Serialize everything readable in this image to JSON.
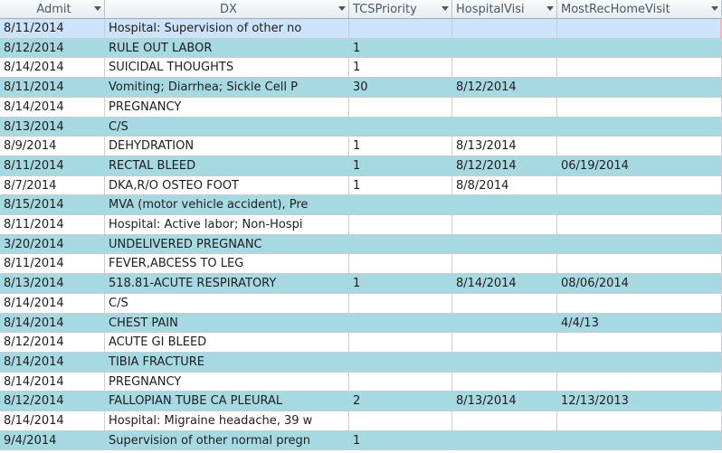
{
  "columns": [
    "Admit",
    "DX",
    "TCSPriority",
    "HospitalVisi",
    "MostRecHomeVisit"
  ],
  "rows": [
    [
      "8/11/2014",
      "Hospital: Supervision of other no",
      "",
      "",
      ""
    ],
    [
      "8/12/2014",
      "RULE OUT LABOR",
      "1",
      "",
      ""
    ],
    [
      "8/14/2014",
      "SUICIDAL THOUGHTS",
      "1",
      "",
      ""
    ],
    [
      "8/11/2014",
      "Vomiting; Diarrhea; Sickle Cell P",
      "30",
      "8/12/2014",
      ""
    ],
    [
      "8/14/2014",
      "PREGNANCY",
      "",
      "",
      ""
    ],
    [
      "8/13/2014",
      "C/S",
      "",
      "",
      ""
    ],
    [
      "8/9/2014",
      "DEHYDRATION",
      "1",
      "8/13/2014",
      ""
    ],
    [
      "8/11/2014",
      "RECTAL BLEED",
      "1",
      "8/12/2014",
      "06/19/2014"
    ],
    [
      "8/7/2014",
      "DKA,R/O OSTEO FOOT",
      "1",
      "8/8/2014",
      ""
    ],
    [
      "8/15/2014",
      "MVA (motor vehicle accident), Pre",
      "",
      "",
      ""
    ],
    [
      "8/11/2014",
      "Hospital: Active labor; Non-Hospi",
      "",
      "",
      ""
    ],
    [
      "3/20/2014",
      "UNDELIVERED PREGNANC",
      "",
      "",
      ""
    ],
    [
      "8/11/2014",
      "FEVER,ABCESS TO LEG",
      "",
      "",
      ""
    ],
    [
      "8/13/2014",
      "518.81-ACUTE RESPIRATORY",
      "1",
      "8/14/2014",
      "08/06/2014"
    ],
    [
      "8/14/2014",
      "C/S",
      "",
      "",
      ""
    ],
    [
      "8/14/2014",
      "CHEST PAIN",
      "",
      "",
      "4/4/13"
    ],
    [
      "8/12/2014",
      "ACUTE GI BLEED",
      "",
      "",
      ""
    ],
    [
      "8/14/2014",
      "TIBIA FRACTURE",
      "",
      "",
      ""
    ],
    [
      "8/14/2014",
      "PREGNANCY",
      "",
      "",
      ""
    ],
    [
      "8/12/2014",
      "FALLOPIAN TUBE CA PLEURAL",
      "2",
      "8/13/2014",
      "12/13/2013"
    ],
    [
      "8/14/2014",
      "Hospital: Migraine headache, 39 w",
      "",
      "",
      ""
    ],
    [
      "9/4/2014",
      "Supervision of other normal pregn",
      "1",
      "",
      ""
    ]
  ],
  "selected_row": 0,
  "colors": {
    "alt_row": "#a7d9e3",
    "selected_row": "#cde3fa",
    "grid_line": "#c7cdd2"
  }
}
